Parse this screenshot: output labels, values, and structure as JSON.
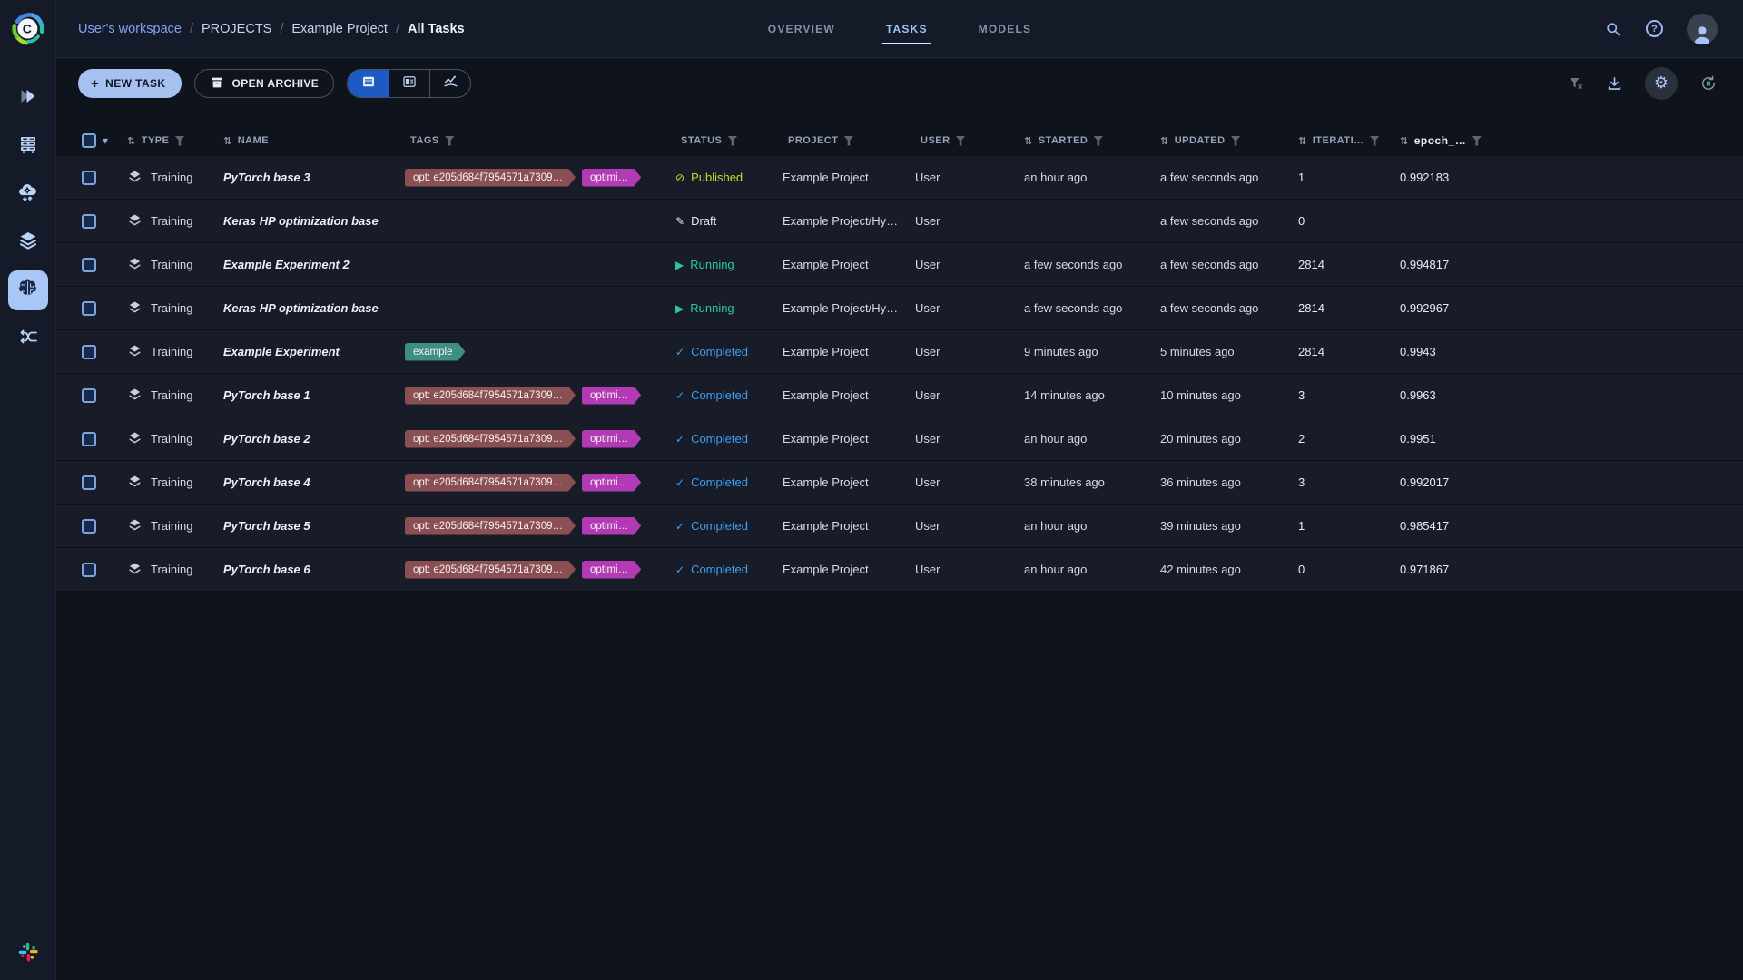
{
  "app": {
    "logo_letter": "C"
  },
  "header": {
    "breadcrumb": {
      "separator": "/",
      "items": [
        {
          "label": "User's workspace",
          "style": "link"
        },
        {
          "label": "PROJECTS",
          "style": "normal"
        },
        {
          "label": "Example Project",
          "style": "normal"
        },
        {
          "label": "All Tasks",
          "style": "current"
        }
      ]
    },
    "tabs": [
      {
        "label": "OVERVIEW",
        "active": false
      },
      {
        "label": "TASKS",
        "active": true
      },
      {
        "label": "MODELS",
        "active": false
      }
    ],
    "help_glyph": "?"
  },
  "toolbar": {
    "new_task_plus": "+",
    "new_task_label": "NEW TASK",
    "open_archive_label": "OPEN ARCHIVE"
  },
  "sidebar": {
    "items": [
      {
        "name": "projects",
        "active": false
      },
      {
        "name": "workers-queues",
        "active": false
      },
      {
        "name": "cloud-autoscalers",
        "active": false
      },
      {
        "name": "datasets",
        "active": false
      },
      {
        "name": "experiments",
        "active": true
      },
      {
        "name": "pipelines",
        "active": false
      }
    ]
  },
  "icons": {
    "top_right": [
      "search-icon",
      "help-icon",
      "avatar"
    ],
    "toolbar_right": [
      "clear-filters-icon",
      "download-icon",
      "settings-gear-icon",
      "auto-refresh-icon"
    ],
    "gear_glyph": "⚙"
  },
  "statuses": {
    "published": {
      "label": "Published",
      "glyph": "⊘",
      "color": "#c9da2b"
    },
    "draft": {
      "label": "Draft",
      "glyph": "✎",
      "color": "#e4e9f2"
    },
    "running": {
      "label": "Running",
      "glyph": "▶",
      "color": "#2bc89c"
    },
    "completed": {
      "label": "Completed",
      "glyph": "✓",
      "color": "#3f9ef4"
    }
  },
  "tag_colors": {
    "red": "#8a4f52",
    "magenta": "#b23ab4",
    "teal": "#3f8e84"
  },
  "colors": {
    "accent": "#a6c0f0",
    "active_toggle": "#1d5bc4",
    "active_tab": "#9dc3fa",
    "row_bg": "#171c28",
    "topbar_bg": "#151a28",
    "sidebar_active_bg": "#a8c6f6"
  },
  "table": {
    "caret_glyph": "▾",
    "sort_glyph": "⇅",
    "columns": [
      {
        "label": "TYPE",
        "sort": true,
        "filter": true
      },
      {
        "label": "NAME",
        "sort": true,
        "filter": false
      },
      {
        "label": "TAGS",
        "sort": false,
        "filter": true
      },
      {
        "label": "STATUS",
        "sort": false,
        "filter": true
      },
      {
        "label": "PROJECT",
        "sort": false,
        "filter": true
      },
      {
        "label": "USER",
        "sort": false,
        "filter": true
      },
      {
        "label": "STARTED",
        "sort": true,
        "filter": true
      },
      {
        "label": "UPDATED",
        "sort": true,
        "filter": true
      },
      {
        "label": "ITERATI…",
        "sort": true,
        "filter": true
      },
      {
        "label": "epoch_…",
        "sort": true,
        "filter": true,
        "strong": true
      }
    ],
    "rows": [
      {
        "type": "Training",
        "name": "PyTorch base 3",
        "tags": [
          {
            "text": "opt: e205d684f7954571a7309…",
            "color": "red"
          },
          {
            "text": "optimi…",
            "color": "magenta"
          }
        ],
        "status": "published",
        "project": "Example Project",
        "user": "User",
        "started": "an hour ago",
        "updated": "a few seconds ago",
        "iterations": "1",
        "epoch": "0.992183"
      },
      {
        "type": "Training",
        "name": "Keras HP optimization base",
        "tags": [],
        "status": "draft",
        "project": "Example Project/Hy…",
        "user": "User",
        "started": "",
        "updated": "a few seconds ago",
        "iterations": "0",
        "epoch": ""
      },
      {
        "type": "Training",
        "name": "Example Experiment 2",
        "tags": [],
        "status": "running",
        "project": "Example Project",
        "user": "User",
        "started": "a few seconds ago",
        "updated": "a few seconds ago",
        "iterations": "2814",
        "epoch": "0.994817"
      },
      {
        "type": "Training",
        "name": "Keras HP optimization base",
        "tags": [],
        "status": "running",
        "project": "Example Project/Hy…",
        "user": "User",
        "started": "a few seconds ago",
        "updated": "a few seconds ago",
        "iterations": "2814",
        "epoch": "0.992967"
      },
      {
        "type": "Training",
        "name": "Example Experiment",
        "tags": [
          {
            "text": "example",
            "color": "teal"
          }
        ],
        "status": "completed",
        "project": "Example Project",
        "user": "User",
        "started": "9 minutes ago",
        "updated": "5 minutes ago",
        "iterations": "2814",
        "epoch": "0.9943"
      },
      {
        "type": "Training",
        "name": "PyTorch base 1",
        "tags": [
          {
            "text": "opt: e205d684f7954571a7309…",
            "color": "red"
          },
          {
            "text": "optimi…",
            "color": "magenta"
          }
        ],
        "status": "completed",
        "project": "Example Project",
        "user": "User",
        "started": "14 minutes ago",
        "updated": "10 minutes ago",
        "iterations": "3",
        "epoch": "0.9963"
      },
      {
        "type": "Training",
        "name": "PyTorch base 2",
        "tags": [
          {
            "text": "opt: e205d684f7954571a7309…",
            "color": "red"
          },
          {
            "text": "optimi…",
            "color": "magenta"
          }
        ],
        "status": "completed",
        "project": "Example Project",
        "user": "User",
        "started": "an hour ago",
        "updated": "20 minutes ago",
        "iterations": "2",
        "epoch": "0.9951"
      },
      {
        "type": "Training",
        "name": "PyTorch base 4",
        "tags": [
          {
            "text": "opt: e205d684f7954571a7309…",
            "color": "red"
          },
          {
            "text": "optimi…",
            "color": "magenta"
          }
        ],
        "status": "completed",
        "project": "Example Project",
        "user": "User",
        "started": "38 minutes ago",
        "updated": "36 minutes ago",
        "iterations": "3",
        "epoch": "0.992017"
      },
      {
        "type": "Training",
        "name": "PyTorch base 5",
        "tags": [
          {
            "text": "opt: e205d684f7954571a7309…",
            "color": "red"
          },
          {
            "text": "optimi…",
            "color": "magenta"
          }
        ],
        "status": "completed",
        "project": "Example Project",
        "user": "User",
        "started": "an hour ago",
        "updated": "39 minutes ago",
        "iterations": "1",
        "epoch": "0.985417"
      },
      {
        "type": "Training",
        "name": "PyTorch base 6",
        "tags": [
          {
            "text": "opt: e205d684f7954571a7309…",
            "color": "red"
          },
          {
            "text": "optimi…",
            "color": "magenta"
          }
        ],
        "status": "completed",
        "project": "Example Project",
        "user": "User",
        "started": "an hour ago",
        "updated": "42 minutes ago",
        "iterations": "0",
        "epoch": "0.971867"
      }
    ]
  }
}
